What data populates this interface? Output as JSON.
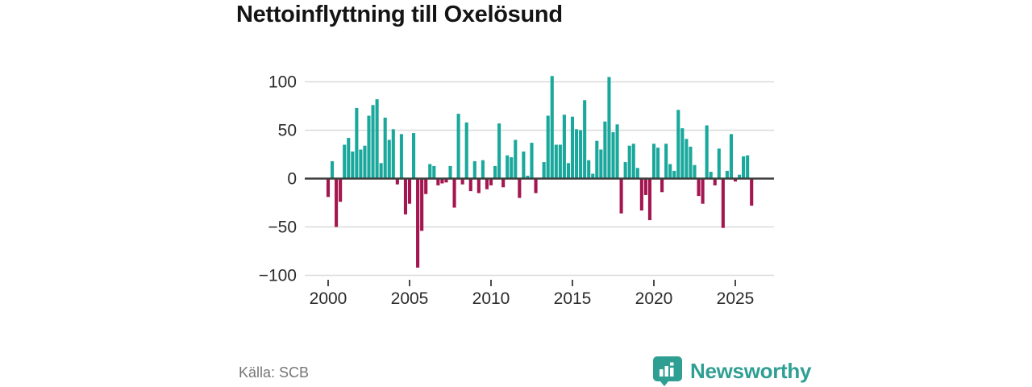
{
  "header": {
    "title": "Nettoinflyttning till Oxelösund"
  },
  "footer": {
    "source": "Källa: SCB",
    "brand": "Newsworthy"
  },
  "colors": {
    "positive_bar": "#1aa89c",
    "negative_bar": "#a4164f",
    "zero_line": "#3d3d3d",
    "gridline": "#dadada",
    "axis_text": "#2b2b2b",
    "brand_teal": "#2f9f93"
  },
  "icons": {
    "brand_icon": "newsworthy-bar-chart-pin"
  },
  "chart_data": {
    "type": "bar",
    "title": "Nettoinflyttning till Oxelösund",
    "frequency": "quarterly",
    "start_period": "2000-Q1",
    "end_period": "2026-Q1",
    "grid": true,
    "ylim": [
      -100,
      100
    ],
    "y_ticks": [
      100,
      50,
      0,
      -50,
      -100
    ],
    "y_tick_labels": [
      "100",
      "50",
      "0",
      "−50",
      "−100"
    ],
    "x_ticks": [
      2000,
      2005,
      2010,
      2015,
      2020,
      2025
    ],
    "x_tick_labels": [
      "2000",
      "2005",
      "2010",
      "2015",
      "2020",
      "2025"
    ],
    "series": [
      {
        "name": "Nettoinflyttning",
        "values": [
          -19,
          18,
          -50,
          -24,
          35,
          42,
          28,
          73,
          30,
          34,
          65,
          76,
          82,
          16,
          63,
          40,
          51,
          -6,
          46,
          -37,
          -26,
          47,
          -92,
          -54,
          -16,
          15,
          13,
          -7,
          -5,
          -4,
          13,
          -30,
          67,
          -6,
          58,
          -13,
          18,
          -15,
          19,
          -11,
          -7,
          13,
          57,
          -9,
          24,
          22,
          40,
          -20,
          28,
          3,
          37,
          -15,
          0,
          17,
          65,
          106,
          35,
          35,
          66,
          16,
          64,
          51,
          50,
          81,
          19,
          5,
          39,
          30,
          59,
          105,
          48,
          56,
          -36,
          17,
          34,
          36,
          11,
          -33,
          -17,
          -43,
          36,
          32,
          -14,
          36,
          15,
          8,
          71,
          52,
          41,
          33,
          14,
          -18,
          -26,
          55,
          7,
          -7,
          31,
          -51,
          8,
          46,
          -3,
          4,
          23,
          24,
          -28
        ]
      }
    ]
  }
}
